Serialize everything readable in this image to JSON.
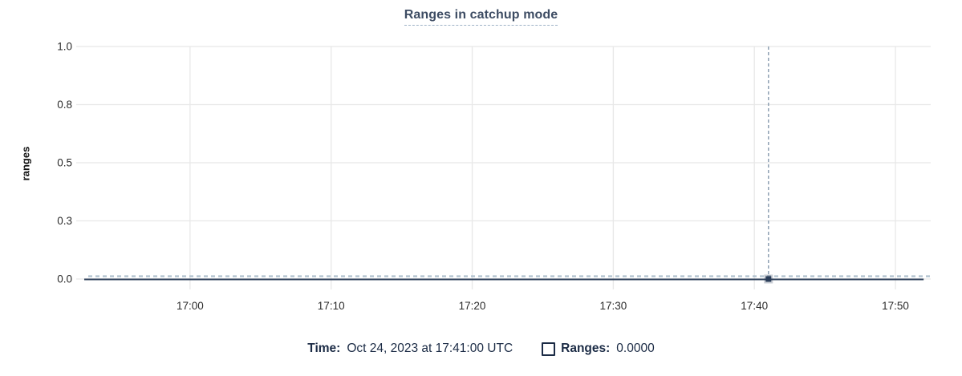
{
  "title": "Ranges in catchup mode",
  "y_axis_title": "ranges",
  "legend": {
    "time_label": "Time:",
    "time_value": "Oct 24, 2023 at 17:41:00 UTC",
    "series_label": "Ranges:",
    "series_value": "0.0000",
    "series_checkbox_checked": false
  },
  "colors": {
    "background": "#ffffff",
    "title_text": "#3d4c63",
    "title_underline": "#9fb3c7",
    "grid": "#e8e8e8",
    "axis_text": "#2b2b2b",
    "series_line": "#2a3c57",
    "crosshair": "#8fa1b2",
    "zero_guideline": "#b3c3d0",
    "hover_dot": "#2b3d59",
    "legend_text": "#1b2b45"
  },
  "chart_data": {
    "type": "line",
    "title": "Ranges in catchup mode",
    "xlabel": "",
    "ylabel": "ranges",
    "grid": true,
    "legend_position": "bottom-center",
    "x_axis": {
      "range": [
        "16:52:30",
        "17:52:30"
      ],
      "ticks": [
        "17:00",
        "17:10",
        "17:20",
        "17:30",
        "17:40",
        "17:50"
      ]
    },
    "y_axis": {
      "range": [
        0,
        1
      ],
      "tick_values": [
        0,
        0.25,
        0.5,
        0.75,
        1.0
      ],
      "tick_labels": [
        "0.0",
        "0.3",
        "0.5",
        "0.8",
        "1.0"
      ]
    },
    "series": [
      {
        "name": "Ranges",
        "color": "#2a3c57",
        "points": [
          {
            "x": "16:52:30",
            "y": 0
          },
          {
            "x": "17:00:00",
            "y": 0
          },
          {
            "x": "17:10:00",
            "y": 0
          },
          {
            "x": "17:20:00",
            "y": 0
          },
          {
            "x": "17:30:00",
            "y": 0
          },
          {
            "x": "17:40:00",
            "y": 0
          },
          {
            "x": "17:41:00",
            "y": 0
          },
          {
            "x": "17:50:00",
            "y": 0
          },
          {
            "x": "17:52:00",
            "y": 0
          }
        ]
      }
    ],
    "hover": {
      "x": "17:41:00",
      "time_label": "Oct 24, 2023 at 17:41:00 UTC",
      "values": {
        "Ranges": "0.0000"
      }
    },
    "zero_guideline": {
      "y": 0.012,
      "style": "dashed"
    }
  }
}
